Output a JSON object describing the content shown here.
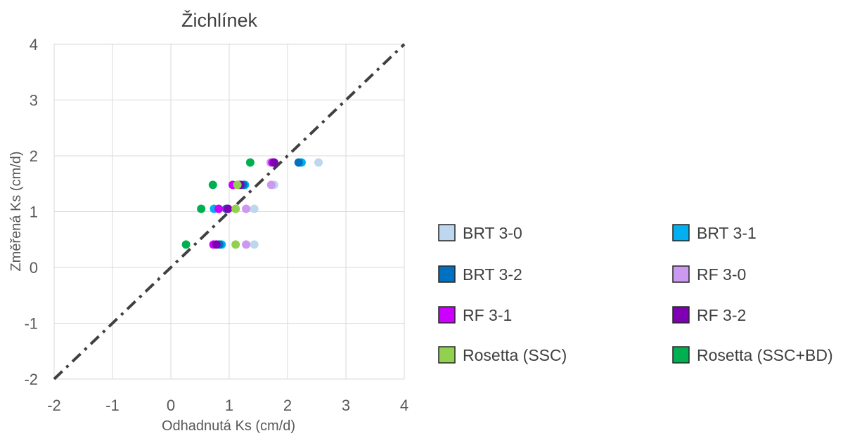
{
  "chart_data": {
    "type": "scatter",
    "title": "Žichlínek",
    "xlabel": "Odhadnutá Ks (cm/d)",
    "ylabel": "Změřená Ks (cm/d)",
    "xlim": [
      -2,
      4
    ],
    "ylim": [
      -2,
      4
    ],
    "x_ticks": [
      "-2",
      "-1",
      "0",
      "1",
      "2",
      "3",
      "4"
    ],
    "y_ticks": [
      "-2",
      "-1",
      "0",
      "1",
      "2",
      "3",
      "4"
    ],
    "grid": true,
    "legend_position": "right",
    "reference_line": {
      "style": "dash-dot",
      "color": "#404040",
      "from": [
        -2,
        -2
      ],
      "to": [
        4,
        4
      ]
    },
    "series": [
      {
        "name": "BRT 3-0",
        "color": "#BDD7EE",
        "points": [
          [
            2.53,
            1.88
          ],
          [
            1.77,
            1.48
          ],
          [
            1.43,
            1.05
          ],
          [
            1.43,
            0.41
          ]
        ]
      },
      {
        "name": "BRT 3-1",
        "color": "#00B0F0",
        "points": [
          [
            2.24,
            1.88
          ],
          [
            1.27,
            1.48
          ],
          [
            0.74,
            1.05
          ],
          [
            0.87,
            0.41
          ]
        ]
      },
      {
        "name": "BRT 3-2",
        "color": "#0070C0",
        "points": [
          [
            2.19,
            1.88
          ],
          [
            1.24,
            1.48
          ],
          [
            0.95,
            1.05
          ],
          [
            0.83,
            0.41
          ]
        ]
      },
      {
        "name": "RF 3-0",
        "color": "#CC99F0",
        "points": [
          [
            1.71,
            1.88
          ],
          [
            1.72,
            1.48
          ],
          [
            1.29,
            1.05
          ],
          [
            1.29,
            0.41
          ]
        ]
      },
      {
        "name": "RF 3-1",
        "color": "#CC00FF",
        "points": [
          [
            1.74,
            1.88
          ],
          [
            1.06,
            1.48
          ],
          [
            0.82,
            1.05
          ],
          [
            0.73,
            0.41
          ]
        ]
      },
      {
        "name": "RF 3-2",
        "color": "#7F00B2",
        "points": [
          [
            1.77,
            1.88
          ],
          [
            1.19,
            1.48
          ],
          [
            0.98,
            1.05
          ],
          [
            0.78,
            0.41
          ]
        ]
      },
      {
        "name": "Rosetta (SSC)",
        "color": "#92D050",
        "points": [
          [
            1.14,
            1.48
          ],
          [
            1.11,
            1.05
          ],
          [
            1.11,
            0.41
          ]
        ]
      },
      {
        "name": "Rosetta (SSC+BD)",
        "color": "#00B050",
        "points": [
          [
            1.36,
            1.88
          ],
          [
            0.72,
            1.48
          ],
          [
            0.52,
            1.05
          ],
          [
            0.26,
            0.41
          ]
        ]
      }
    ]
  }
}
